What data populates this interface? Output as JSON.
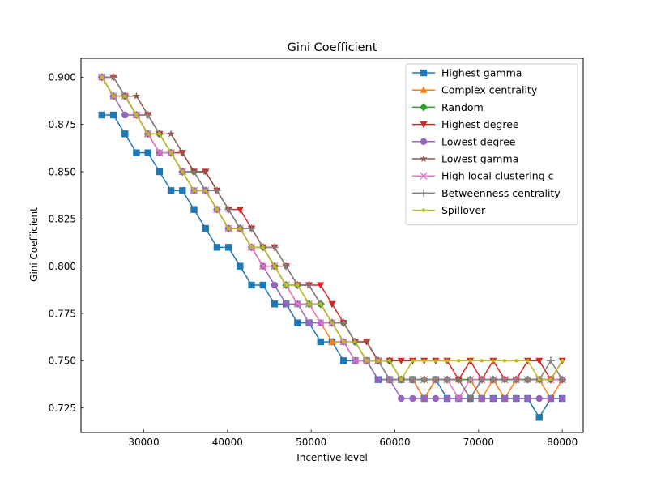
{
  "chart_data": {
    "type": "line",
    "title": "Gini Coefficient",
    "xlabel": "Incentive level",
    "ylabel": "Gini Coefficient",
    "xlim": [
      22500,
      82500
    ],
    "ylim": [
      0.712,
      0.91
    ],
    "xticks": [
      30000,
      40000,
      50000,
      60000,
      70000,
      80000
    ],
    "yticks": [
      0.725,
      0.75,
      0.775,
      0.8,
      0.825,
      0.85,
      0.875,
      0.9
    ],
    "xtick_labels": [
      "30000",
      "40000",
      "50000",
      "60000",
      "70000",
      "80000"
    ],
    "ytick_labels": [
      "0.725",
      "0.750",
      "0.775",
      "0.800",
      "0.825",
      "0.850",
      "0.875",
      "0.900"
    ],
    "grid": false,
    "legend_position": "top-right",
    "x": [
      25000,
      26375,
      27750,
      29125,
      30500,
      31875,
      33250,
      34625,
      36000,
      37375,
      38750,
      40125,
      41500,
      42875,
      44250,
      45625,
      47000,
      48375,
      49750,
      51125,
      52500,
      53875,
      55250,
      56625,
      58000,
      59375,
      60750,
      62125,
      63500,
      64875,
      66250,
      67625,
      69000,
      70375,
      71750,
      73125,
      74500,
      75875,
      77250,
      78625,
      80000
    ],
    "series": [
      {
        "name": "Highest gamma",
        "color": "#1f77b4",
        "marker": "square",
        "values": [
          0.88,
          0.88,
          0.87,
          0.86,
          0.86,
          0.85,
          0.84,
          0.84,
          0.83,
          0.82,
          0.81,
          0.81,
          0.8,
          0.79,
          0.79,
          0.78,
          0.78,
          0.77,
          0.77,
          0.76,
          0.76,
          0.75,
          0.75,
          0.75,
          0.74,
          0.74,
          0.74,
          0.74,
          0.73,
          0.74,
          0.73,
          0.73,
          0.73,
          0.73,
          0.73,
          0.73,
          0.73,
          0.73,
          0.72,
          0.73,
          0.73
        ]
      },
      {
        "name": "Complex centrality",
        "color": "#ff7f0e",
        "marker": "triangle-up",
        "values": [
          0.9,
          0.89,
          0.89,
          0.88,
          0.87,
          0.86,
          0.86,
          0.85,
          0.84,
          0.84,
          0.83,
          0.82,
          0.82,
          0.81,
          0.8,
          0.8,
          0.79,
          0.78,
          0.78,
          0.77,
          0.76,
          0.76,
          0.75,
          0.75,
          0.75,
          0.74,
          0.74,
          0.74,
          0.73,
          0.74,
          0.74,
          0.74,
          0.74,
          0.73,
          0.74,
          0.73,
          0.74,
          0.74,
          0.74,
          0.73,
          0.74
        ]
      },
      {
        "name": "Random",
        "color": "#2ca02c",
        "marker": "diamond",
        "values": [
          0.9,
          0.89,
          0.89,
          0.88,
          0.87,
          0.87,
          0.86,
          0.85,
          0.85,
          0.84,
          0.83,
          0.82,
          0.82,
          0.81,
          0.81,
          0.8,
          0.79,
          0.79,
          0.78,
          0.78,
          0.77,
          0.77,
          0.76,
          0.75,
          0.75,
          0.75,
          0.74,
          0.74,
          0.74,
          0.74,
          0.74,
          0.74,
          0.74,
          0.74,
          0.74,
          0.74,
          0.74,
          0.74,
          0.74,
          0.74,
          0.74
        ]
      },
      {
        "name": "Highest degree",
        "color": "#d62728",
        "marker": "triangle-down",
        "values": [
          0.9,
          0.9,
          0.89,
          0.88,
          0.88,
          0.87,
          0.86,
          0.86,
          0.85,
          0.85,
          0.84,
          0.83,
          0.83,
          0.82,
          0.81,
          0.81,
          0.8,
          0.79,
          0.79,
          0.79,
          0.78,
          0.77,
          0.76,
          0.76,
          0.75,
          0.75,
          0.75,
          0.75,
          0.75,
          0.75,
          0.75,
          0.74,
          0.75,
          0.74,
          0.75,
          0.74,
          0.74,
          0.75,
          0.75,
          0.74,
          0.75
        ]
      },
      {
        "name": "Lowest degree",
        "color": "#9467bd",
        "marker": "circle",
        "values": [
          0.9,
          0.89,
          0.88,
          0.88,
          0.87,
          0.86,
          0.86,
          0.85,
          0.84,
          0.84,
          0.83,
          0.82,
          0.82,
          0.81,
          0.8,
          0.79,
          0.78,
          0.78,
          0.77,
          0.77,
          0.77,
          0.76,
          0.75,
          0.75,
          0.74,
          0.74,
          0.73,
          0.73,
          0.73,
          0.73,
          0.73,
          0.73,
          0.73,
          0.73,
          0.73,
          0.73,
          0.73,
          0.73,
          0.73,
          0.73,
          0.73
        ]
      },
      {
        "name": "Lowest gamma",
        "color": "#8c564b",
        "marker": "star",
        "values": [
          0.9,
          0.9,
          0.89,
          0.89,
          0.88,
          0.87,
          0.87,
          0.86,
          0.85,
          0.85,
          0.84,
          0.83,
          0.82,
          0.82,
          0.81,
          0.8,
          0.8,
          0.79,
          0.79,
          0.78,
          0.77,
          0.77,
          0.76,
          0.76,
          0.75,
          0.75,
          0.74,
          0.74,
          0.74,
          0.74,
          0.74,
          0.74,
          0.73,
          0.74,
          0.74,
          0.74,
          0.74,
          0.74,
          0.74,
          0.74,
          0.74
        ]
      },
      {
        "name": "High local clustering c",
        "color": "#e377c2",
        "marker": "x",
        "values": [
          0.9,
          0.89,
          0.89,
          0.88,
          0.87,
          0.86,
          0.86,
          0.85,
          0.84,
          0.84,
          0.83,
          0.82,
          0.82,
          0.81,
          0.8,
          0.8,
          0.79,
          0.78,
          0.78,
          0.77,
          0.77,
          0.76,
          0.75,
          0.75,
          0.75,
          0.74,
          0.74,
          0.74,
          0.74,
          0.74,
          0.74,
          0.73,
          0.74,
          0.74,
          0.74,
          0.74,
          0.74,
          0.74,
          0.74,
          0.74,
          0.74
        ]
      },
      {
        "name": "Betweenness centrality",
        "color": "#7f7f7f",
        "marker": "plus",
        "values": [
          0.9,
          0.9,
          0.89,
          0.88,
          0.88,
          0.87,
          0.86,
          0.85,
          0.85,
          0.84,
          0.84,
          0.83,
          0.82,
          0.82,
          0.81,
          0.81,
          0.8,
          0.79,
          0.79,
          0.78,
          0.77,
          0.77,
          0.76,
          0.75,
          0.75,
          0.74,
          0.74,
          0.74,
          0.74,
          0.74,
          0.74,
          0.74,
          0.73,
          0.74,
          0.74,
          0.74,
          0.74,
          0.74,
          0.74,
          0.75,
          0.74
        ]
      },
      {
        "name": "Spillover",
        "color": "#bcbd22",
        "marker": "point",
        "values": [
          0.9,
          0.89,
          0.89,
          0.88,
          0.87,
          0.87,
          0.86,
          0.85,
          0.84,
          0.84,
          0.83,
          0.82,
          0.82,
          0.81,
          0.81,
          0.8,
          0.79,
          0.79,
          0.78,
          0.78,
          0.77,
          0.76,
          0.76,
          0.75,
          0.75,
          0.75,
          0.74,
          0.75,
          0.75,
          0.75,
          0.75,
          0.75,
          0.75,
          0.75,
          0.75,
          0.75,
          0.75,
          0.75,
          0.74,
          0.74,
          0.75
        ]
      }
    ]
  }
}
